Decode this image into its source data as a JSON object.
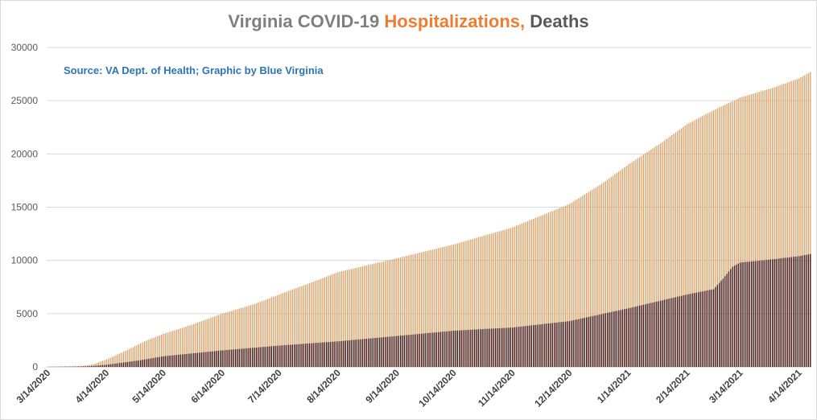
{
  "title": {
    "part1": "Virginia COVID-19 ",
    "part2": "Hospitalizations, ",
    "part3": "Deaths"
  },
  "source": "Source: VA Dept. of Health; Graphic by Blue Virginia",
  "colors": {
    "hospitalizations": "#d9a066",
    "deaths": "#3a1010",
    "title_gray": "#7f7f7f",
    "title_orange": "#ed7d31",
    "title_dark": "#595959",
    "source_blue": "#2e75b6",
    "grid": "#d9d9d9"
  },
  "chart_data": {
    "type": "bar",
    "x_tick_labels": [
      "3/14/2020",
      "4/14/2020",
      "5/14/2020",
      "6/14/2020",
      "7/14/2020",
      "8/14/2020",
      "9/14/2020",
      "10/14/2020",
      "11/14/2020",
      "12/14/2020",
      "1/14/2021",
      "2/14/2021",
      "3/14/2021",
      "4/14/2021"
    ],
    "y_ticks": [
      0,
      5000,
      10000,
      15000,
      20000,
      25000,
      30000
    ],
    "ylim": [
      0,
      30000
    ],
    "xlim": [
      "3/14/2020",
      "4/20/2021"
    ],
    "grid": true,
    "legend": "none",
    "series": [
      {
        "key": "hospitalizations",
        "points": [
          [
            "3/14/2020",
            0
          ],
          [
            "3/31/2020",
            50
          ],
          [
            "4/7/2020",
            250
          ],
          [
            "4/14/2020",
            700
          ],
          [
            "4/24/2020",
            1500
          ],
          [
            "5/4/2020",
            2400
          ],
          [
            "5/14/2020",
            3100
          ],
          [
            "5/28/2020",
            3900
          ],
          [
            "6/14/2020",
            5000
          ],
          [
            "7/1/2020",
            5900
          ],
          [
            "7/14/2020",
            6800
          ],
          [
            "8/1/2020",
            8000
          ],
          [
            "8/14/2020",
            8900
          ],
          [
            "9/14/2020",
            10200
          ],
          [
            "10/14/2020",
            11500
          ],
          [
            "11/14/2020",
            13100
          ],
          [
            "12/14/2020",
            15300
          ],
          [
            "12/31/2020",
            17200
          ],
          [
            "1/14/2021",
            19000
          ],
          [
            "1/31/2021",
            21000
          ],
          [
            "2/14/2021",
            22800
          ],
          [
            "3/1/2021",
            24200
          ],
          [
            "3/14/2021",
            25300
          ],
          [
            "3/31/2021",
            26200
          ],
          [
            "4/14/2021",
            27100
          ],
          [
            "4/20/2021",
            27700
          ]
        ]
      },
      {
        "key": "deaths",
        "points": [
          [
            "3/14/2020",
            0
          ],
          [
            "4/5/2020",
            60
          ],
          [
            "4/14/2020",
            200
          ],
          [
            "5/1/2020",
            600
          ],
          [
            "5/14/2020",
            1000
          ],
          [
            "6/14/2020",
            1550
          ],
          [
            "7/14/2020",
            2000
          ],
          [
            "8/14/2020",
            2400
          ],
          [
            "9/14/2020",
            2900
          ],
          [
            "10/14/2020",
            3400
          ],
          [
            "11/14/2020",
            3700
          ],
          [
            "12/14/2020",
            4300
          ],
          [
            "1/14/2021",
            5500
          ],
          [
            "2/14/2021",
            6800
          ],
          [
            "2/28/2021",
            7300
          ],
          [
            "3/5/2021",
            8300
          ],
          [
            "3/10/2021",
            9400
          ],
          [
            "3/14/2021",
            9800
          ],
          [
            "3/31/2021",
            10100
          ],
          [
            "4/14/2021",
            10400
          ],
          [
            "4/20/2021",
            10600
          ]
        ]
      }
    ]
  }
}
